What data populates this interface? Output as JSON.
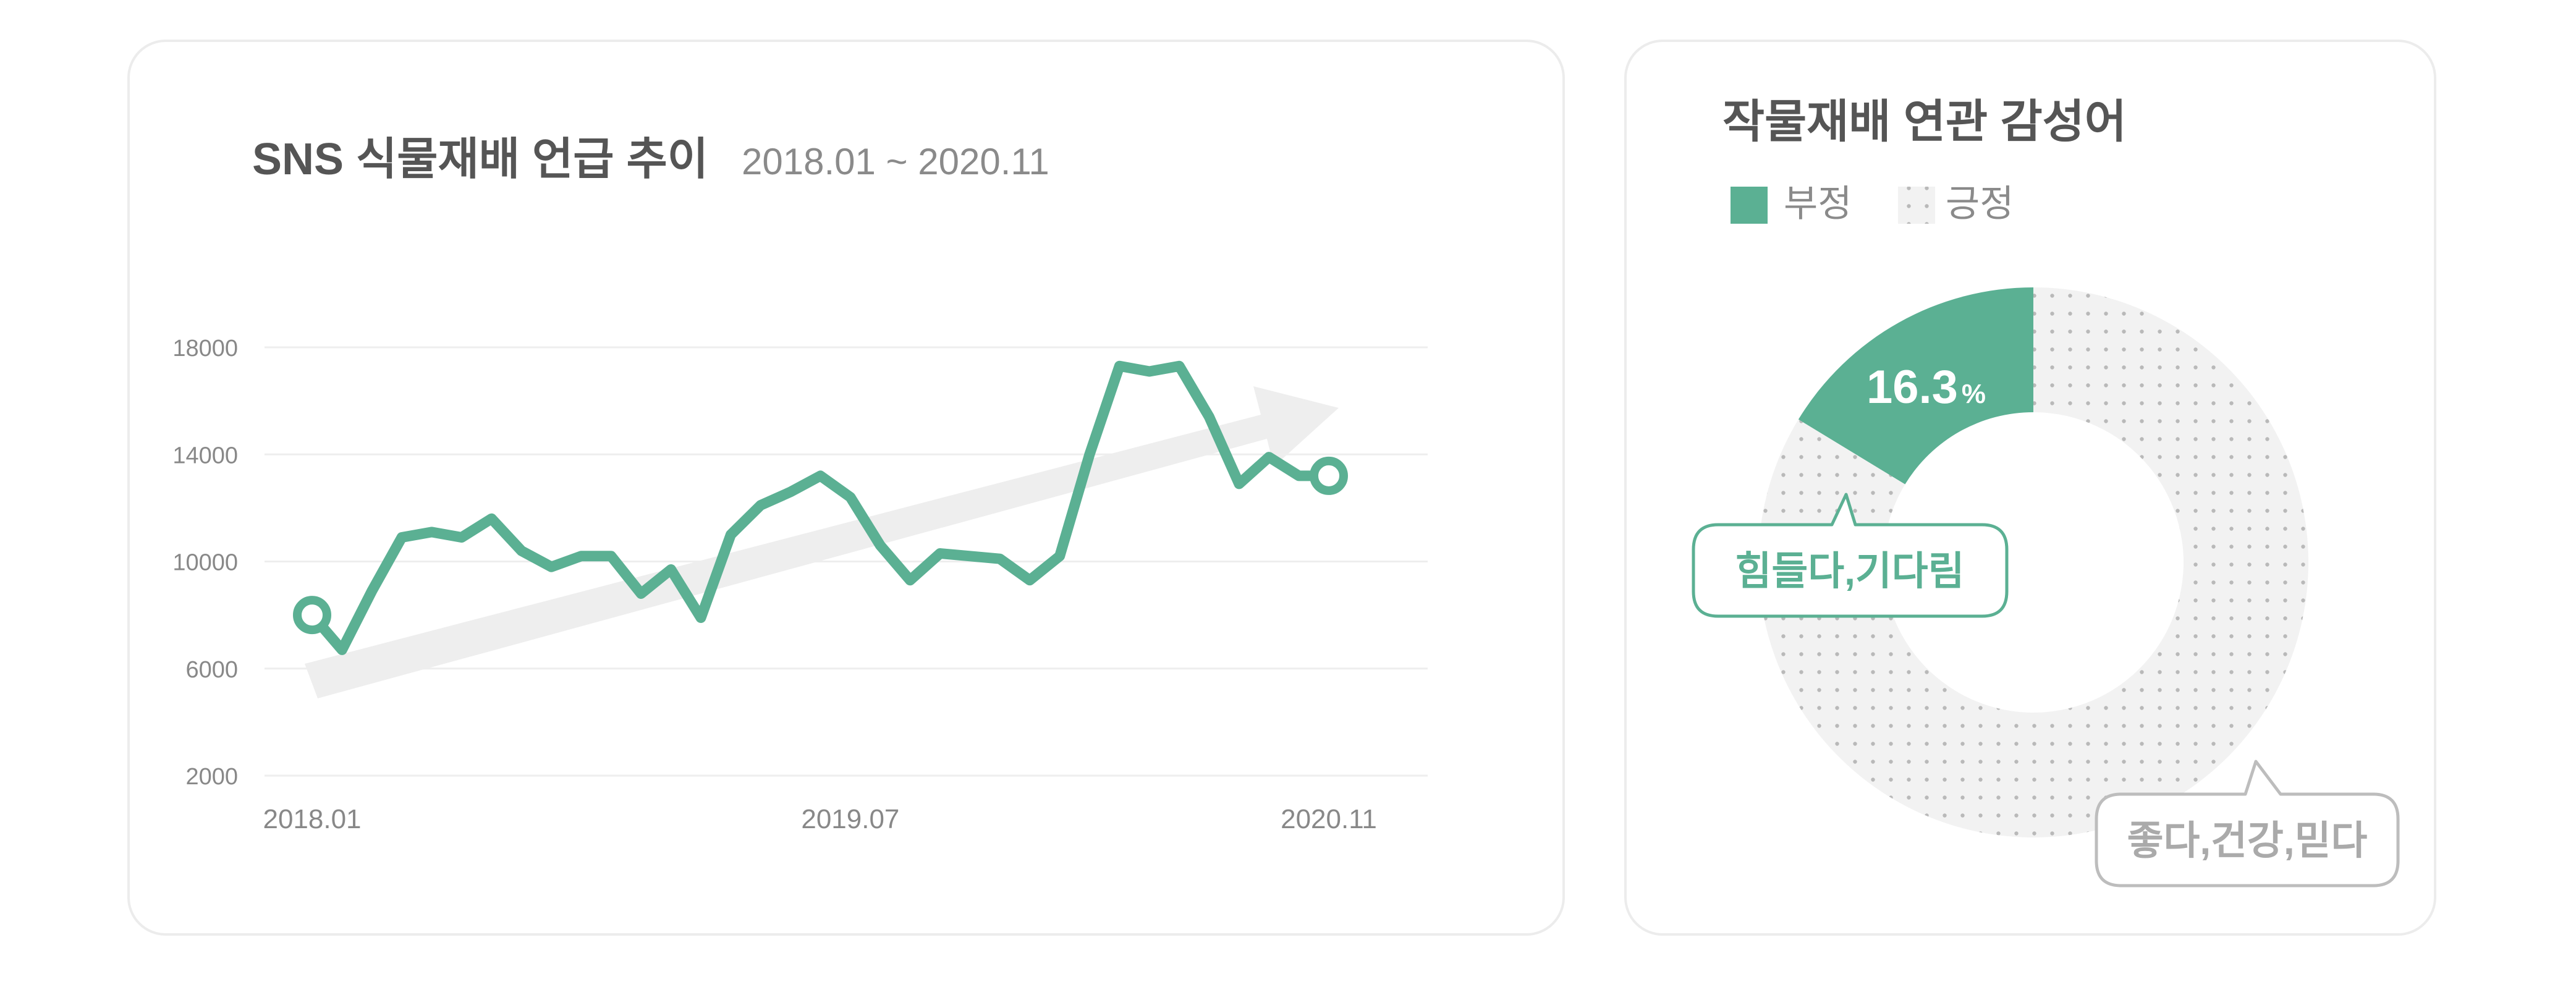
{
  "colors": {
    "accent": "#5bb093",
    "grid": "#eeeeee",
    "arrow": "#eeeeee",
    "muted": "#888888",
    "title": "#555555",
    "positive_fill": "#f2f2f2",
    "dots": "#b9b9b9"
  },
  "line_card": {
    "title": "SNS 식물재배 언급 추이",
    "subtitle": "2018.01 ~ 2020.11"
  },
  "donut_card": {
    "title": "작물재배 연관 감성어",
    "legend": [
      {
        "label": "부정",
        "swatch": "solid"
      },
      {
        "label": "긍정",
        "swatch": "dotted"
      }
    ],
    "negative_value": "16.3",
    "negative_unit": "%",
    "negative_callout": "힘들다,기다림",
    "positive_callout": "좋다,건강,믿다"
  },
  "chart_data": [
    {
      "type": "line",
      "title": "SNS 식물재배 언급 추이",
      "subtitle": "2018.01 ~ 2020.11",
      "y_ticks": [
        2000,
        6000,
        10000,
        14000,
        18000
      ],
      "y_tick_labels": [
        "2000",
        "6000",
        "10000",
        "14000",
        "18000"
      ],
      "ylim": [
        2000,
        18000
      ],
      "x_tick_labels": [
        "2018.01",
        "2019.07",
        "2020.11"
      ],
      "x_ticks": [
        "2018.01",
        "2019.07",
        "2020.11"
      ],
      "x": [
        "2018.01",
        "2018.02",
        "2018.03",
        "2018.04",
        "2018.05",
        "2018.06",
        "2018.07",
        "2018.08",
        "2018.09",
        "2018.10",
        "2018.11",
        "2018.12",
        "2019.01",
        "2019.02",
        "2019.03",
        "2019.04",
        "2019.05",
        "2019.06",
        "2019.07",
        "2019.08",
        "2019.09",
        "2019.10",
        "2019.11",
        "2019.12",
        "2020.01",
        "2020.02",
        "2020.03",
        "2020.04",
        "2020.05",
        "2020.06",
        "2020.07",
        "2020.08",
        "2020.09",
        "2020.10",
        "2020.11"
      ],
      "values": [
        8000,
        6700,
        8900,
        10900,
        11100,
        10900,
        11600,
        10400,
        9800,
        10200,
        10200,
        8800,
        9700,
        7900,
        11000,
        12100,
        12600,
        13200,
        12400,
        10600,
        9300,
        10300,
        10200,
        10100,
        9300,
        10200,
        14000,
        17300,
        17100,
        17300,
        15400,
        12900,
        13900,
        13200,
        13200
      ],
      "trend_arrow": true,
      "grid": true
    },
    {
      "type": "pie",
      "title": "작물재배 연관 감성어",
      "categories": [
        "부정",
        "긍정"
      ],
      "values": [
        16.3,
        83.7
      ],
      "unit": "%",
      "donut": true,
      "legend": "top-left"
    }
  ]
}
